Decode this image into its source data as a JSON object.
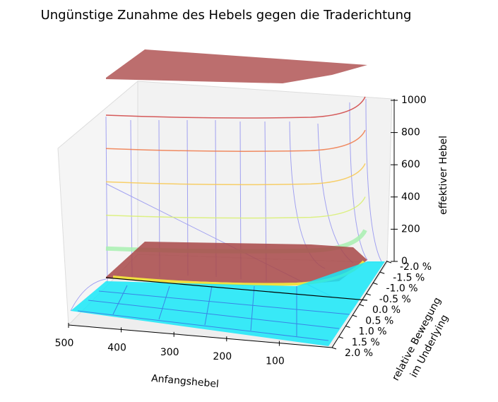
{
  "chart_data": {
    "type": "surface3d",
    "title": "Ungünstige Zunahme des Hebels gegen die Traderichtung",
    "xlabel": "Anfangshebel",
    "ylabel": [
      "relative Bewegung",
      "im Underlying"
    ],
    "zlabel": "effektiver Hebel",
    "xlim": [
      500,
      0
    ],
    "xticks": [
      500,
      400,
      300,
      200,
      100
    ],
    "ylim": [
      -2.0,
      2.0
    ],
    "yticks": [
      {
        "value": -2.0,
        "label": "-2.0 %"
      },
      {
        "value": -1.5,
        "label": "-1.5 %"
      },
      {
        "value": -1.0,
        "label": "-1.0 %"
      },
      {
        "value": -0.5,
        "label": "-0.5 %"
      },
      {
        "value": 0.0,
        "label": "0.0 %"
      },
      {
        "value": 0.5,
        "label": "0.5 %"
      },
      {
        "value": 1.0,
        "label": "1.0 %"
      },
      {
        "value": 1.5,
        "label": "1.5 %"
      },
      {
        "value": 2.0,
        "label": "2.0 %"
      }
    ],
    "zlim": [
      0,
      1000
    ],
    "zticks": [
      0,
      200,
      400,
      600,
      800,
      1000
    ],
    "contour_levels": {
      "values": [
        1000,
        800,
        600,
        400,
        200
      ],
      "colors": [
        "#d04040",
        "#f07848",
        "#f8c850",
        "#d8f070",
        "#a8f0b0"
      ]
    }
  }
}
